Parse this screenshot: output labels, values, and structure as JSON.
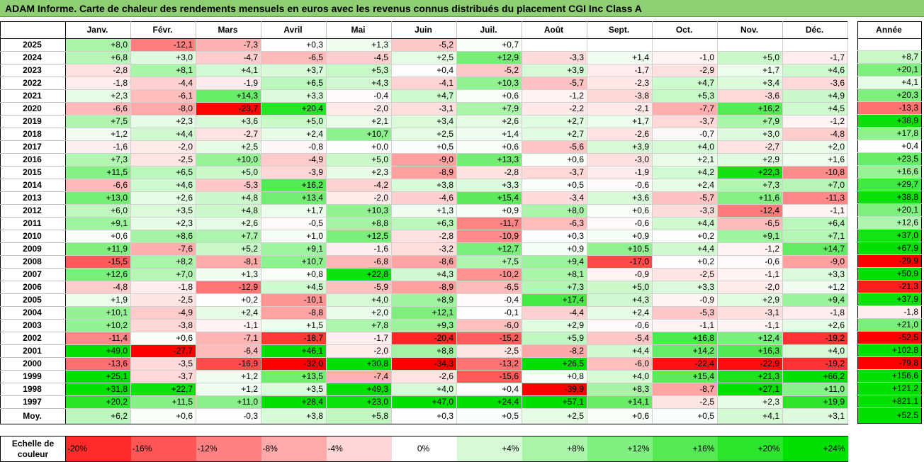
{
  "title": "ADAM Informe. Carte de chaleur des rendements mensuels en euros avec les revenus connus distribués du placement CGI Inc Class A",
  "chart_data": {
    "type": "heatmap",
    "months": [
      "Janv.",
      "Févr.",
      "Mars",
      "Avril",
      "Mai",
      "Juin",
      "Juil.",
      "Août",
      "Sept.",
      "Oct.",
      "Nov.",
      "Déc."
    ],
    "annual_header": "Année",
    "rows": [
      {
        "year": "2025",
        "values": [
          "+8,0",
          "-12,1",
          "-7,3",
          "+0,3",
          "+1,3",
          "-5,2",
          "+0,7",
          "",
          "",
          "",
          "",
          ""
        ],
        "annual": ""
      },
      {
        "year": "2024",
        "values": [
          "+6,8",
          "+3,0",
          "-4,7",
          "-6,5",
          "-4,5",
          "+2,5",
          "+12,9",
          "-3,3",
          "+1,4",
          "-1,0",
          "+5,0",
          "-1,7"
        ],
        "annual": "+8,7"
      },
      {
        "year": "2023",
        "values": [
          "-2,8",
          "+8,1",
          "+4,1",
          "+3,7",
          "+5,3",
          "+0,4",
          "-5,2",
          "+3,9",
          "-1,7",
          "-2,9",
          "+1,7",
          "+4,6"
        ],
        "annual": "+20,1"
      },
      {
        "year": "2022",
        "values": [
          "-1,8",
          "-4,4",
          "-1,9",
          "+6,5",
          "+4,3",
          "-4,1",
          "+10,3",
          "-5,7",
          "-2,3",
          "+4,7",
          "+3,4",
          "-3,6"
        ],
        "annual": "+4,1"
      },
      {
        "year": "2021",
        "values": [
          "+2,3",
          "-6,1",
          "+14,3",
          "+3,3",
          "-0,4",
          "+4,7",
          "+0,6",
          "-1,2",
          "-3,8",
          "+5,3",
          "-3,6",
          "+4,9"
        ],
        "annual": "+20,3"
      },
      {
        "year": "2020",
        "values": [
          "-6,6",
          "-8,0",
          "-23,7",
          "+20,4",
          "-2,0",
          "-3,1",
          "+7,9",
          "-2,2",
          "-2,1",
          "-7,7",
          "+16,2",
          "+4,5"
        ],
        "annual": "-13,3"
      },
      {
        "year": "2019",
        "values": [
          "+7,5",
          "+2,3",
          "+3,6",
          "+5,0",
          "+2,1",
          "+3,4",
          "+2,6",
          "+2,7",
          "+1,7",
          "-3,7",
          "+7,9",
          "-1,2"
        ],
        "annual": "+38,9"
      },
      {
        "year": "2018",
        "values": [
          "+1,2",
          "+4,4",
          "-2,7",
          "+2,4",
          "+10,7",
          "+2,5",
          "+1,4",
          "+2,7",
          "-2,6",
          "-0,7",
          "+3,0",
          "-4,8"
        ],
        "annual": "+17,8"
      },
      {
        "year": "2017",
        "values": [
          "-1,6",
          "-2,0",
          "+2,5",
          "-0,8",
          "+0,0",
          "+0,5",
          "+0,6",
          "-5,6",
          "+3,9",
          "+4,0",
          "-2,7",
          "+2,0"
        ],
        "annual": "+0,4"
      },
      {
        "year": "2016",
        "values": [
          "+7,3",
          "-2,5",
          "+10,0",
          "-4,9",
          "+5,0",
          "-9,0",
          "+13,3",
          "+0,6",
          "-3,0",
          "+2,1",
          "+2,9",
          "+1,6"
        ],
        "annual": "+23,5"
      },
      {
        "year": "2015",
        "values": [
          "+11,5",
          "+6,5",
          "+5,0",
          "-3,9",
          "+2,3",
          "-8,9",
          "-2,8",
          "-3,7",
          "-1,9",
          "+4,2",
          "+22,3",
          "-10,8"
        ],
        "annual": "+16,6"
      },
      {
        "year": "2014",
        "values": [
          "-6,6",
          "+4,6",
          "-5,3",
          "+16,2",
          "-4,2",
          "+3,8",
          "+3,3",
          "+0,5",
          "-0,6",
          "+2,4",
          "+7,3",
          "+7,0"
        ],
        "annual": "+29,7"
      },
      {
        "year": "2013",
        "values": [
          "+13,0",
          "+2,6",
          "+4,8",
          "+13,4",
          "-2,0",
          "-4,6",
          "+15,4",
          "-3,4",
          "+3,6",
          "-5,7",
          "+11,6",
          "-11,3"
        ],
        "annual": "+38,8"
      },
      {
        "year": "2012",
        "values": [
          "+6,0",
          "+3,5",
          "+4,8",
          "+1,7",
          "+10,3",
          "+1,3",
          "+0,9",
          "+8,0",
          "+0,6",
          "-3,3",
          "-12,4",
          "-1,1"
        ],
        "annual": "+20,1"
      },
      {
        "year": "2011",
        "values": [
          "+9,1",
          "+2,3",
          "+2,6",
          "-0,5",
          "+8,8",
          "+6,3",
          "-11,7",
          "-6,3",
          "-0,6",
          "+4,4",
          "-6,5",
          "+6,4"
        ],
        "annual": "+12,6"
      },
      {
        "year": "2010",
        "values": [
          "+0,6",
          "+8,6",
          "+7,7",
          "+1,0",
          "+12,5",
          "-2,8",
          "-10,9",
          "+0,3",
          "+0,9",
          "+0,2",
          "+9,1",
          "+7,1"
        ],
        "annual": "+37,0"
      },
      {
        "year": "2009",
        "values": [
          "+11,9",
          "-7,6",
          "+5,2",
          "+9,1",
          "-1,6",
          "-3,2",
          "+12,7",
          "+0,9",
          "+10,5",
          "+4,4",
          "-1,2",
          "+14,7"
        ],
        "annual": "+67,9"
      },
      {
        "year": "2008",
        "values": [
          "-15,5",
          "+8,2",
          "-8,1",
          "+10,7",
          "-6,8",
          "-8,6",
          "+7,5",
          "+9,4",
          "-17,0",
          "+0,2",
          "-0,6",
          "-9,0"
        ],
        "annual": "-29,9"
      },
      {
        "year": "2007",
        "values": [
          "+12,6",
          "+7,0",
          "+1,3",
          "+0,8",
          "+22,8",
          "+4,3",
          "-10,2",
          "+8,1",
          "-0,9",
          "-2,5",
          "-1,1",
          "+3,3"
        ],
        "annual": "+50,9"
      },
      {
        "year": "2006",
        "values": [
          "-4,8",
          "-1,8",
          "-12,9",
          "+4,5",
          "-5,9",
          "-8,9",
          "-6,5",
          "+7,3",
          "+5,0",
          "+3,3",
          "-2,0",
          "+1,2"
        ],
        "annual": "-21,3"
      },
      {
        "year": "2005",
        "values": [
          "+1,9",
          "-2,5",
          "+0,2",
          "-10,1",
          "+4,0",
          "+8,9",
          "-0,4",
          "+17,4",
          "+4,3",
          "-0,9",
          "+2,9",
          "+9,4"
        ],
        "annual": "+37,9"
      },
      {
        "year": "2004",
        "values": [
          "+10,1",
          "-4,9",
          "+2,4",
          "-8,8",
          "+2,0",
          "+12,1",
          "-0,1",
          "-4,4",
          "+2,4",
          "-5,3",
          "-3,1",
          "-1,8"
        ],
        "annual": "-1,8"
      },
      {
        "year": "2003",
        "values": [
          "+10,2",
          "-3,8",
          "-1,1",
          "+1,5",
          "+7,8",
          "+9,3",
          "-6,0",
          "+2,9",
          "-0,6",
          "-1,1",
          "-1,1",
          "+2,6"
        ],
        "annual": "+21,0"
      },
      {
        "year": "2002",
        "values": [
          "-11,4",
          "+0,6",
          "-7,1",
          "-18,7",
          "-1,7",
          "-20,4",
          "-15,2",
          "+5,9",
          "-5,4",
          "+16,8",
          "+12,4",
          "-19,2"
        ],
        "annual": "-52,5"
      },
      {
        "year": "2001",
        "values": [
          "+49,0",
          "-27,7",
          "-6,4",
          "+46,1",
          "-2,0",
          "+8,8",
          "-2,5",
          "-8,2",
          "+4,4",
          "+14,2",
          "+16,3",
          "+4,0"
        ],
        "annual": "+102,8"
      },
      {
        "year": "2000",
        "values": [
          "-13,6",
          "-3,5",
          "-16,9",
          "-32,0",
          "+30,8",
          "-34,3",
          "-13,2",
          "+26,5",
          "-6,0",
          "-22,4",
          "-22,9",
          "-19,2"
        ],
        "annual": "-79,8"
      },
      {
        "year": "1999",
        "values": [
          "+25,1",
          "-3,7",
          "+1,2",
          "+13,5",
          "-7,4",
          "-2,6",
          "-15,6",
          "+0,8",
          "+4,0",
          "+15,4",
          "+21,3",
          "+66,2"
        ],
        "annual": "+156,6"
      },
      {
        "year": "1998",
        "values": [
          "+31,8",
          "+22,7",
          "+1,2",
          "+3,5",
          "+49,3",
          "+4,0",
          "+0,4",
          "-39,9",
          "+8,3",
          "-8,7",
          "+27,1",
          "+11,0"
        ],
        "annual": "+121,2"
      },
      {
        "year": "1997",
        "values": [
          "+20,2",
          "+11,5",
          "+11,0",
          "+28,4",
          "+23,0",
          "+47,0",
          "+24,4",
          "+57,1",
          "+14,1",
          "-2,5",
          "+2,3",
          "+19,9"
        ],
        "annual": "+821,1"
      }
    ],
    "average": {
      "label": "Moy.",
      "values": [
        "+6,2",
        "+0,6",
        "-0,3",
        "+3,8",
        "+5,8",
        "+0,3",
        "+0,5",
        "+2,5",
        "+0,6",
        "+0,5",
        "+4,1",
        "+3,1"
      ],
      "annual": "+52,5"
    },
    "scale": {
      "label_line1": "Echelle de",
      "label_line2": "couleur",
      "steps": [
        "-20%",
        "-16%",
        "-12%",
        "-8%",
        "-4%",
        "0%",
        "+4%",
        "+8%",
        "+12%",
        "+16%",
        "+20%",
        "+24%"
      ],
      "step_values": [
        -20,
        -16,
        -12,
        -8,
        -4,
        0,
        4,
        8,
        12,
        16,
        20,
        24
      ]
    },
    "colors": {
      "negative_max": "#ff0000",
      "neutral": "#ffffff",
      "positive_max": "#00e000"
    }
  }
}
